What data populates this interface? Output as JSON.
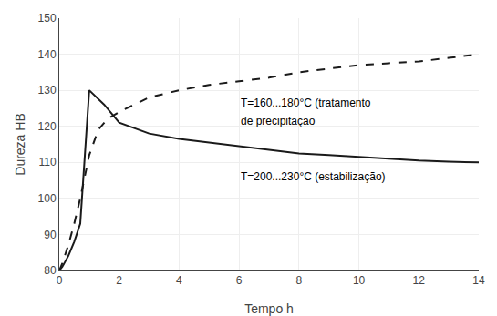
{
  "chart_data": {
    "type": "line",
    "xlabel": "Tempo h",
    "ylabel": "Dureza HB",
    "xlim": [
      0,
      14
    ],
    "ylim": [
      80,
      150
    ],
    "xticks": [
      0,
      2,
      4,
      6,
      8,
      10,
      12,
      14
    ],
    "yticks": [
      80,
      90,
      100,
      110,
      120,
      130,
      140,
      150
    ],
    "grid": true,
    "series": [
      {
        "color": "#1a1a1a",
        "line_style": "solid",
        "x": [
          0,
          0.05,
          0.1,
          0.2,
          0.3,
          0.5,
          0.7,
          1.0,
          1.5,
          2.0,
          3.0,
          4.0,
          5.0,
          6.0,
          7.0,
          8.0,
          9.0,
          10.0,
          11.0,
          12.0,
          13.0,
          14.0
        ],
        "values": [
          80,
          80.5,
          81,
          82.5,
          84,
          88,
          93,
          130,
          126,
          121,
          118,
          116.5,
          115.5,
          114.5,
          113.5,
          112.5,
          112,
          111.5,
          111,
          110.5,
          110.2,
          110
        ]
      },
      {
        "color": "#1a1a1a",
        "line_style": "dashed",
        "x": [
          0,
          0.05,
          0.1,
          0.2,
          0.3,
          0.5,
          0.7,
          1.0,
          1.3,
          1.6,
          2.0,
          2.5,
          3.0,
          4.0,
          5.0,
          6.0,
          7.0,
          8.0,
          9.0,
          10.0,
          11.0,
          12.0,
          13.0,
          14.0
        ],
        "values": [
          80,
          81,
          82,
          84.5,
          87,
          93,
          100,
          112,
          119,
          122,
          124,
          126,
          128,
          130,
          131.5,
          132.5,
          133.5,
          135,
          136,
          137,
          137.5,
          138,
          139,
          140
        ]
      }
    ],
    "annotations": [
      {
        "text": "T=160...180°C (tratamento",
        "x": 6.0,
        "y": 126.5
      },
      {
        "text": "de precipitação",
        "x": 6.0,
        "y": 121.5
      },
      {
        "text": "T=200...230°C (estabilização)",
        "x": 6.0,
        "y": 106.0
      }
    ]
  }
}
